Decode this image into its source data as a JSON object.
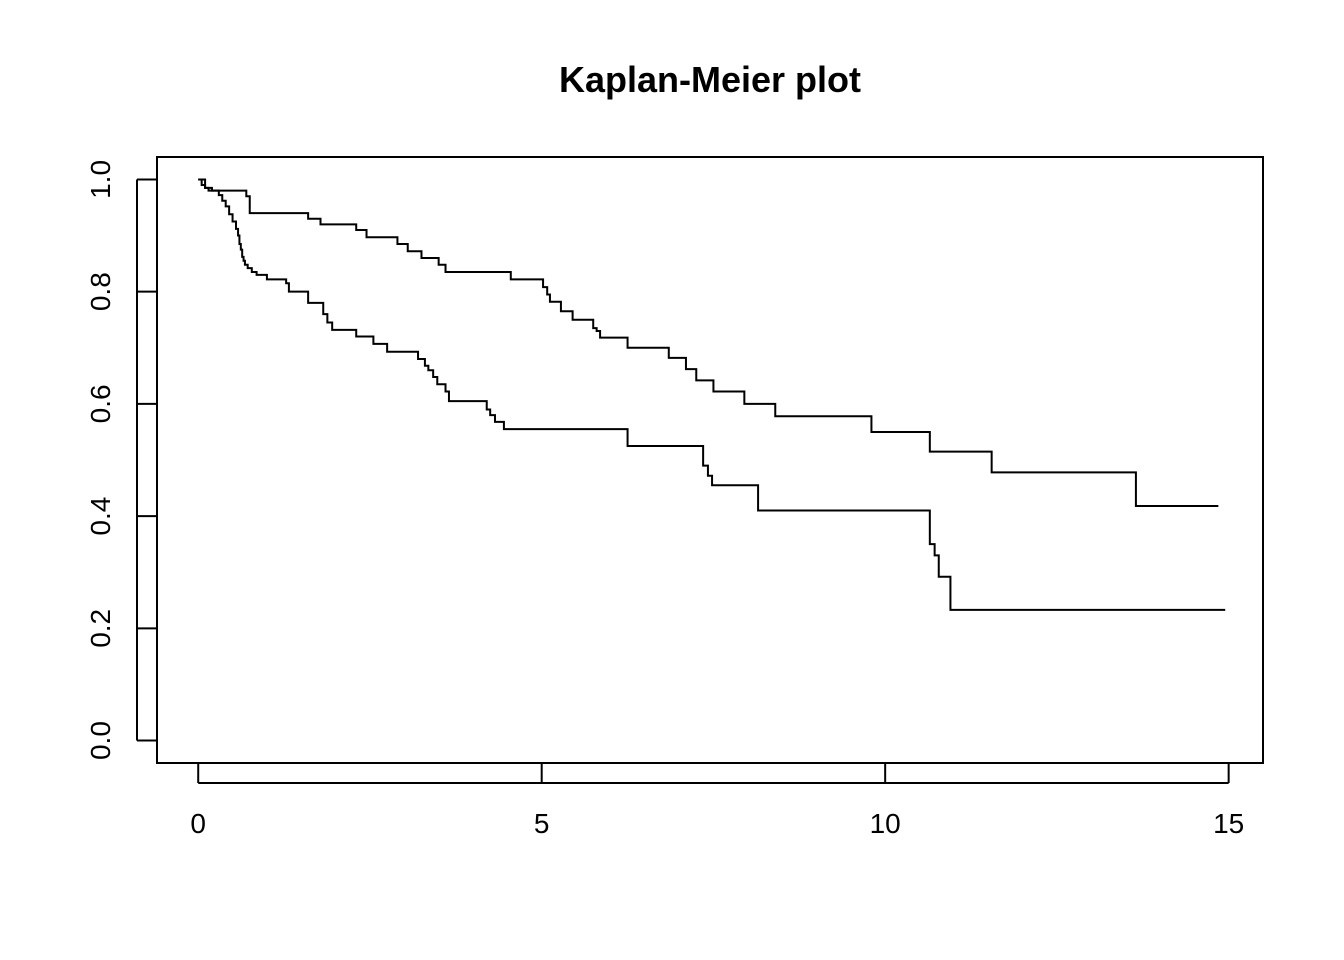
{
  "chart_data": {
    "type": "line",
    "step": true,
    "title": "Kaplan-Meier plot",
    "xlabel": "",
    "ylabel": "",
    "xlim": [
      -0.6,
      15.5
    ],
    "ylim": [
      -0.04,
      1.04
    ],
    "x_ticks": [
      0,
      5,
      10,
      15
    ],
    "x_tick_labels": [
      "0",
      "5",
      "10",
      "15"
    ],
    "y_ticks": [
      0.0,
      0.2,
      0.4,
      0.6,
      0.8,
      1.0
    ],
    "y_tick_labels": [
      "0.0",
      "0.2",
      "0.4",
      "0.6",
      "0.8",
      "1.0"
    ],
    "grid": false,
    "legend": "none",
    "series": [
      {
        "x": [
          0,
          0.05,
          0.1,
          0.2,
          0.25,
          0.7,
          0.75,
          1.6,
          1.78,
          2.3,
          2.45,
          2.9,
          3.05,
          3.25,
          3.5,
          3.6,
          4.55,
          4.6,
          4.65,
          4.7,
          4.75,
          4.8,
          4.85,
          4.9,
          5.02,
          5.08,
          5.12,
          5.28,
          5.45,
          5.75,
          5.8,
          5.85,
          6.25,
          6.85,
          7.1,
          7.25,
          7.5,
          7.95,
          8.4,
          9.8,
          10.65,
          11.55,
          13.65,
          14.85
        ],
        "y": [
          1.0,
          0.99,
          0.985,
          0.98,
          0.98,
          0.97,
          0.94,
          0.93,
          0.92,
          0.91,
          0.897,
          0.885,
          0.872,
          0.86,
          0.848,
          0.835,
          0.822,
          0.822,
          0.822,
          0.822,
          0.822,
          0.822,
          0.822,
          0.822,
          0.808,
          0.795,
          0.782,
          0.765,
          0.75,
          0.735,
          0.73,
          0.718,
          0.7,
          0.682,
          0.662,
          0.642,
          0.622,
          0.6,
          0.578,
          0.55,
          0.515,
          0.478,
          0.418,
          0.418
        ]
      },
      {
        "x": [
          0,
          0.1,
          0.15,
          0.3,
          0.35,
          0.4,
          0.45,
          0.5,
          0.55,
          0.58,
          0.6,
          0.62,
          0.64,
          0.66,
          0.68,
          0.72,
          0.78,
          0.85,
          1.0,
          1.28,
          1.32,
          1.6,
          1.82,
          1.88,
          1.95,
          2.3,
          2.55,
          2.75,
          3.2,
          3.3,
          3.35,
          3.42,
          3.48,
          3.6,
          3.65,
          4.2,
          4.25,
          4.32,
          4.45,
          6.25,
          7.35,
          7.42,
          7.48,
          8.15,
          10.65,
          10.72,
          10.78,
          10.95,
          14.95
        ],
        "y": [
          1.0,
          0.985,
          0.98,
          0.972,
          0.962,
          0.952,
          0.938,
          0.925,
          0.912,
          0.9,
          0.885,
          0.875,
          0.862,
          0.855,
          0.848,
          0.842,
          0.835,
          0.83,
          0.822,
          0.815,
          0.8,
          0.78,
          0.76,
          0.745,
          0.732,
          0.72,
          0.707,
          0.693,
          0.68,
          0.668,
          0.66,
          0.648,
          0.635,
          0.622,
          0.605,
          0.59,
          0.58,
          0.568,
          0.555,
          0.525,
          0.49,
          0.472,
          0.455,
          0.41,
          0.35,
          0.33,
          0.292,
          0.233,
          0.233
        ]
      }
    ]
  }
}
